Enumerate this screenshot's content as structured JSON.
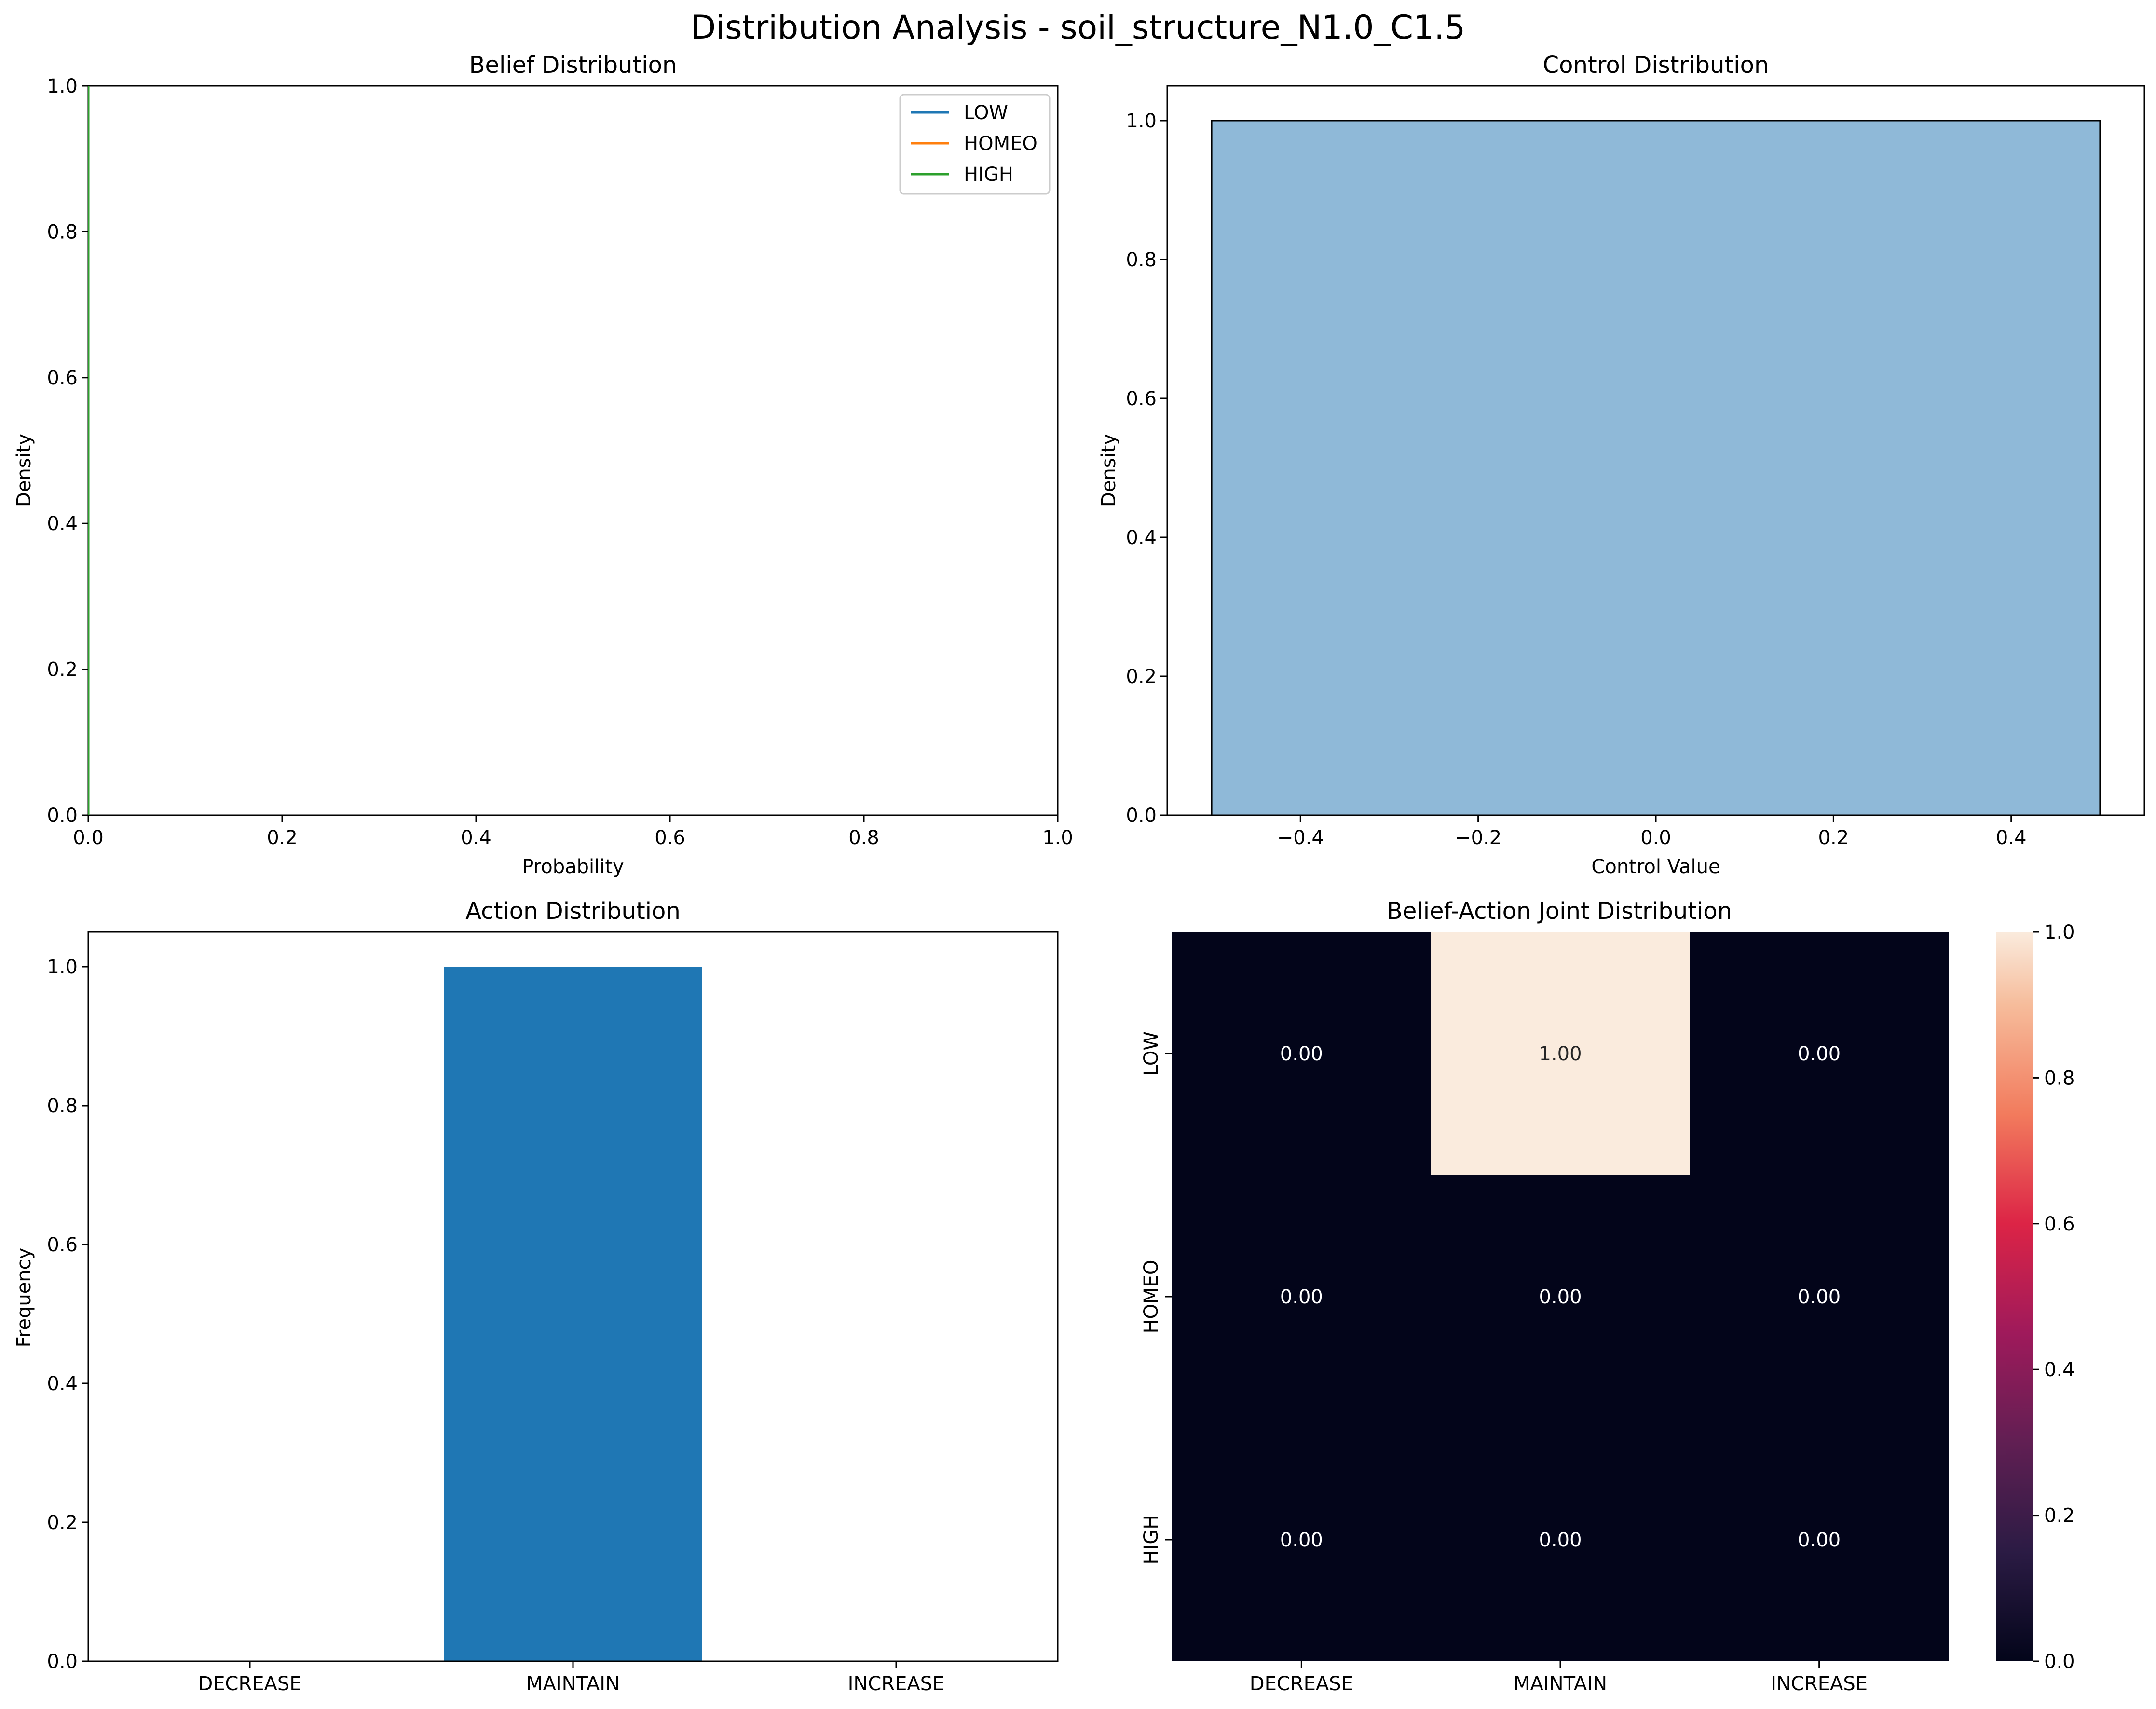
{
  "figure": {
    "title": "Distribution Analysis - soil_structure_N1.0_C1.5"
  },
  "chart_data": [
    {
      "id": "belief",
      "type": "line",
      "title": "Belief Distribution",
      "xlabel": "Probability",
      "ylabel": "Density",
      "xlim": [
        0,
        1
      ],
      "ylim": [
        0,
        1
      ],
      "xticks": [
        "0.0",
        "0.2",
        "0.4",
        "0.6",
        "0.8",
        "1.0"
      ],
      "yticks": [
        "0.0",
        "0.2",
        "0.4",
        "0.6",
        "0.8",
        "1.0"
      ],
      "legend_position": "top-right",
      "series": [
        {
          "name": "LOW",
          "color": "#1f77b4",
          "x": [],
          "y": []
        },
        {
          "name": "HOMEO",
          "color": "#ff7f0e",
          "x": [],
          "y": []
        },
        {
          "name": "HIGH",
          "color": "#2ca02c",
          "x": [],
          "y": []
        }
      ]
    },
    {
      "id": "control",
      "type": "bar",
      "title": "Control Distribution",
      "xlabel": "Control Value",
      "ylabel": "Density",
      "xlim": [
        -0.55,
        0.55
      ],
      "ylim": [
        0,
        1.05
      ],
      "xticks": [
        "−0.4",
        "−0.2",
        "0.0",
        "0.2",
        "0.4"
      ],
      "xtick_values": [
        -0.4,
        -0.2,
        0.0,
        0.2,
        0.4
      ],
      "yticks": [
        "0.0",
        "0.2",
        "0.4",
        "0.6",
        "0.8",
        "1.0"
      ],
      "bars": [
        {
          "x0": -0.5,
          "x1": 0.5,
          "value": 1.0
        }
      ],
      "color": "#8fb9d8"
    },
    {
      "id": "action",
      "type": "bar",
      "title": "Action Distribution",
      "xlabel": "",
      "ylabel": "Frequency",
      "ylim": [
        0,
        1.05
      ],
      "categories": [
        "DECREASE",
        "MAINTAIN",
        "INCREASE"
      ],
      "values": [
        0,
        1.0,
        0
      ],
      "yticks": [
        "0.0",
        "0.2",
        "0.4",
        "0.6",
        "0.8",
        "1.0"
      ],
      "color": "#1f77b4"
    },
    {
      "id": "joint",
      "type": "heatmap",
      "title": "Belief-Action Joint Distribution",
      "rows": [
        "LOW",
        "HOMEO",
        "HIGH"
      ],
      "columns": [
        "DECREASE",
        "MAINTAIN",
        "INCREASE"
      ],
      "values": [
        [
          0.0,
          1.0,
          0.0
        ],
        [
          0.0,
          0.0,
          0.0
        ],
        [
          0.0,
          0.0,
          0.0
        ]
      ],
      "annotations": [
        [
          "0.00",
          "1.00",
          "0.00"
        ],
        [
          "0.00",
          "0.00",
          "0.00"
        ],
        [
          "0.00",
          "0.00",
          "0.00"
        ]
      ],
      "colorbar_range": [
        0,
        1
      ],
      "colorbar_ticks": [
        "0.0",
        "0.2",
        "0.4",
        "0.6",
        "0.8",
        "1.0"
      ],
      "colormap": "rocket"
    }
  ]
}
